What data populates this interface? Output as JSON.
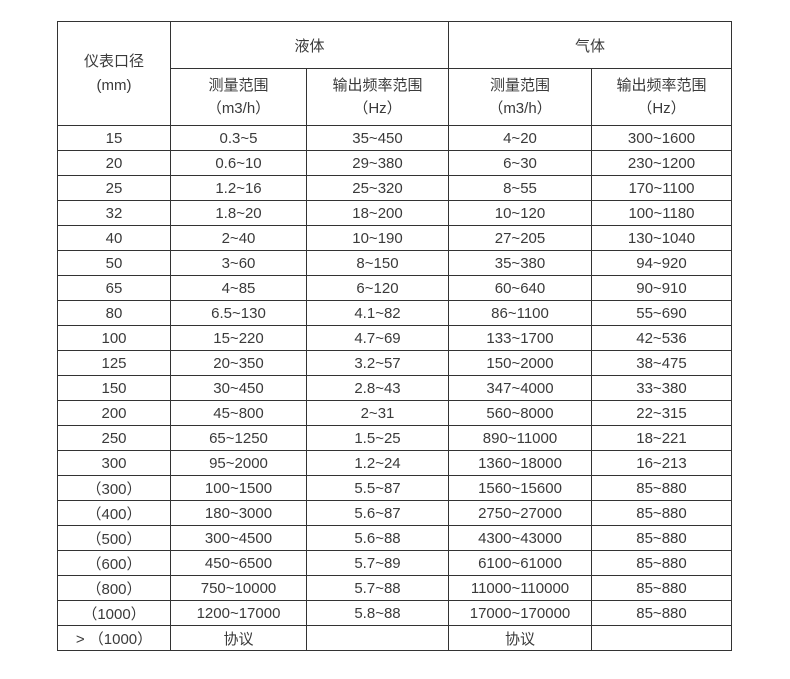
{
  "page": {
    "background": "#ffffff",
    "border_color": "#333333",
    "text_color": "#3a3a3a"
  },
  "table": {
    "header": {
      "diameter_line1": "仪表口径",
      "diameter_line2": "(mm)",
      "liquid_group": "液体",
      "gas_group": "气体",
      "liquid_measure_line1": "测量范围",
      "liquid_measure_line2": "（m3/h）",
      "liquid_freq_line1": "输出频率范围",
      "liquid_freq_line2": "（Hz）",
      "gas_measure_line1": "测量范围",
      "gas_measure_line2": "（m3/h）",
      "gas_freq_line1": "输出频率范围",
      "gas_freq_line2": "（Hz）"
    },
    "rows": [
      [
        "15",
        "0.3~5",
        "35~450",
        "4~20",
        "300~1600"
      ],
      [
        "20",
        "0.6~10",
        "29~380",
        "6~30",
        "230~1200"
      ],
      [
        "25",
        "1.2~16",
        "25~320",
        "8~55",
        "170~1100"
      ],
      [
        "32",
        "1.8~20",
        "18~200",
        "10~120",
        "100~1180"
      ],
      [
        "40",
        "2~40",
        "10~190",
        "27~205",
        "130~1040"
      ],
      [
        "50",
        "3~60",
        "8~150",
        "35~380",
        "94~920"
      ],
      [
        "65",
        "4~85",
        "6~120",
        "60~640",
        "90~910"
      ],
      [
        "80",
        "6.5~130",
        "4.1~82",
        "86~1100",
        "55~690"
      ],
      [
        "100",
        "15~220",
        "4.7~69",
        "133~1700",
        "42~536"
      ],
      [
        "125",
        "20~350",
        "3.2~57",
        "150~2000",
        "38~475"
      ],
      [
        "150",
        "30~450",
        "2.8~43",
        "347~4000",
        "33~380"
      ],
      [
        "200",
        "45~800",
        "2~31",
        "560~8000",
        "22~315"
      ],
      [
        "250",
        "65~1250",
        "1.5~25",
        "890~11000",
        "18~221"
      ],
      [
        "300",
        "95~2000",
        "1.2~24",
        "1360~18000",
        "16~213"
      ],
      [
        "（300）",
        "100~1500",
        "5.5~87",
        "1560~15600",
        "85~880"
      ],
      [
        "（400）",
        "180~3000",
        "5.6~87",
        "2750~27000",
        "85~880"
      ],
      [
        "（500）",
        "300~4500",
        "5.6~88",
        "4300~43000",
        "85~880"
      ],
      [
        "（600）",
        "450~6500",
        "5.7~89",
        "6100~61000",
        "85~880"
      ],
      [
        "（800）",
        "750~10000",
        "5.7~88",
        "11000~110000",
        "85~880"
      ],
      [
        "（1000）",
        "1200~17000",
        "5.8~88",
        "17000~170000",
        "85~880"
      ],
      [
        "> （1000）",
        "协议",
        "",
        "协议",
        ""
      ]
    ]
  }
}
